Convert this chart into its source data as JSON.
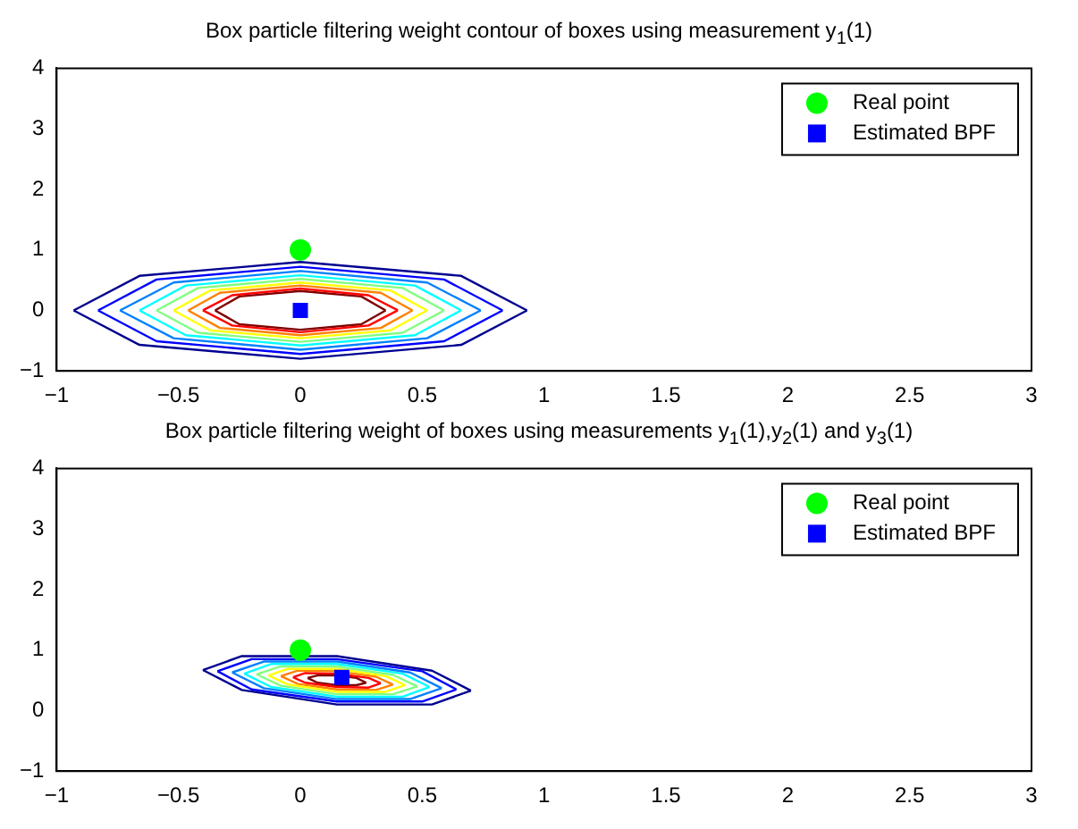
{
  "chart_data": [
    {
      "type": "scatter",
      "title": "Box particle filtering weight contour of boxes using measurement y$_{1}$(1)",
      "xlim": [
        -1,
        3
      ],
      "xticks": [
        -1,
        -0.5,
        0,
        0.5,
        1,
        1.5,
        2,
        2.5,
        3
      ],
      "ylim": [
        -1,
        4
      ],
      "yticks": [
        -1,
        0,
        1,
        2,
        3,
        4
      ],
      "grid": false,
      "legend": "top right",
      "series": [
        {
          "type": "line",
          "marker": "none",
          "color": "#00008f",
          "x": [
            -0.93,
            -0.66,
            0,
            0.66,
            0.93
          ],
          "values": [
            0,
            0.57,
            0.8,
            0.57,
            0
          ]
        },
        {
          "type": "line",
          "marker": "none",
          "color": "#00008f",
          "x": [
            -0.93,
            -0.66,
            0,
            0.66,
            0.93
          ],
          "values": [
            0,
            -0.57,
            -0.8,
            -0.57,
            0
          ]
        },
        {
          "type": "line",
          "marker": "none",
          "color": "#0000ff",
          "x": [
            -0.83,
            -0.59,
            0,
            0.59,
            0.83
          ],
          "values": [
            0,
            0.51,
            0.72,
            0.51,
            0
          ]
        },
        {
          "type": "line",
          "marker": "none",
          "color": "#0000ff",
          "x": [
            -0.83,
            -0.59,
            0,
            0.59,
            0.83
          ],
          "values": [
            0,
            -0.51,
            -0.72,
            -0.51,
            0
          ]
        },
        {
          "type": "line",
          "marker": "none",
          "color": "#0080ff",
          "x": [
            -0.74,
            -0.52,
            0,
            0.52,
            0.74
          ],
          "values": [
            0,
            0.46,
            0.65,
            0.46,
            0
          ]
        },
        {
          "type": "line",
          "marker": "none",
          "color": "#0080ff",
          "x": [
            -0.74,
            -0.52,
            0,
            0.52,
            0.74
          ],
          "values": [
            0,
            -0.46,
            -0.65,
            -0.46,
            0
          ]
        },
        {
          "type": "line",
          "marker": "none",
          "color": "#00ffff",
          "x": [
            -0.66,
            -0.47,
            0,
            0.47,
            0.66
          ],
          "values": [
            0,
            0.41,
            0.58,
            0.41,
            0
          ]
        },
        {
          "type": "line",
          "marker": "none",
          "color": "#00ffff",
          "x": [
            -0.66,
            -0.47,
            0,
            0.47,
            0.66
          ],
          "values": [
            0,
            -0.41,
            -0.58,
            -0.41,
            0
          ]
        },
        {
          "type": "line",
          "marker": "none",
          "color": "#80ff80",
          "x": [
            -0.59,
            -0.42,
            0,
            0.42,
            0.59
          ],
          "values": [
            0,
            0.37,
            0.52,
            0.37,
            0
          ]
        },
        {
          "type": "line",
          "marker": "none",
          "color": "#80ff80",
          "x": [
            -0.59,
            -0.42,
            0,
            0.42,
            0.59
          ],
          "values": [
            0,
            -0.37,
            -0.52,
            -0.37,
            0
          ]
        },
        {
          "type": "line",
          "marker": "none",
          "color": "#ffff00",
          "x": [
            -0.52,
            -0.37,
            0,
            0.37,
            0.52
          ],
          "values": [
            0,
            0.33,
            0.46,
            0.33,
            0
          ]
        },
        {
          "type": "line",
          "marker": "none",
          "color": "#ffff00",
          "x": [
            -0.52,
            -0.37,
            0,
            0.37,
            0.52
          ],
          "values": [
            0,
            -0.33,
            -0.46,
            -0.33,
            0
          ]
        },
        {
          "type": "line",
          "marker": "none",
          "color": "#ff8000",
          "x": [
            -0.46,
            -0.33,
            0,
            0.33,
            0.46
          ],
          "values": [
            0,
            0.29,
            0.41,
            0.29,
            0
          ]
        },
        {
          "type": "line",
          "marker": "none",
          "color": "#ff8000",
          "x": [
            -0.46,
            -0.33,
            0,
            0.33,
            0.46
          ],
          "values": [
            0,
            -0.29,
            -0.41,
            -0.29,
            0
          ]
        },
        {
          "type": "line",
          "marker": "none",
          "color": "#ff0000",
          "x": [
            -0.4,
            -0.28,
            0,
            0.28,
            0.4
          ],
          "values": [
            0,
            0.25,
            0.36,
            0.25,
            0
          ]
        },
        {
          "type": "line",
          "marker": "none",
          "color": "#ff0000",
          "x": [
            -0.4,
            -0.28,
            0,
            0.28,
            0.4
          ],
          "values": [
            0,
            -0.25,
            -0.36,
            -0.25,
            0
          ]
        },
        {
          "type": "line",
          "marker": "none",
          "color": "#800000",
          "x": [
            -0.35,
            -0.25,
            0,
            0.25,
            0.35
          ],
          "values": [
            0,
            0.23,
            0.32,
            0.23,
            0
          ]
        },
        {
          "type": "line",
          "marker": "none",
          "color": "#800000",
          "x": [
            -0.35,
            -0.25,
            0,
            0.25,
            0.35
          ],
          "values": [
            0,
            -0.23,
            -0.32,
            -0.23,
            0
          ]
        },
        {
          "name": "Real point",
          "type": "scatter",
          "marker": "circle",
          "color": "#00ff00",
          "x": [
            0
          ],
          "values": [
            1
          ]
        },
        {
          "name": "Estimated BPF",
          "type": "scatter",
          "marker": "square",
          "color": "#0000ff",
          "x": [
            0
          ],
          "values": [
            0
          ]
        }
      ]
    },
    {
      "type": "scatter",
      "title": "Box particle filtering weight of boxes using measurements y$_{1}$(1),y$_{2}$(1) and y$_{3}$(1)",
      "xlim": [
        -1,
        3
      ],
      "xticks": [
        -1,
        -0.5,
        0,
        0.5,
        1,
        1.5,
        2,
        2.5,
        3
      ],
      "ylim": [
        -1,
        4
      ],
      "yticks": [
        -1,
        0,
        1,
        2,
        3,
        4
      ],
      "grid": false,
      "legend": "top right",
      "series": [
        {
          "type": "line",
          "marker": "none",
          "color": "#00008f",
          "x": [
            -0.4,
            -0.24,
            0.15,
            0.54,
            0.7
          ],
          "values": [
            0.67,
            0.9,
            0.9,
            0.66,
            0.33
          ]
        },
        {
          "type": "line",
          "marker": "none",
          "color": "#00008f",
          "x": [
            -0.4,
            -0.24,
            0.15,
            0.54,
            0.7
          ],
          "values": [
            0.67,
            0.34,
            0.1,
            0.1,
            0.33
          ]
        },
        {
          "type": "line",
          "marker": "none",
          "color": "#0000ff",
          "x": [
            -0.34,
            -0.2,
            0.15,
            0.5,
            0.64
          ],
          "values": [
            0.65,
            0.85,
            0.85,
            0.65,
            0.35
          ]
        },
        {
          "type": "line",
          "marker": "none",
          "color": "#0000ff",
          "x": [
            -0.34,
            -0.2,
            0.15,
            0.5,
            0.64
          ],
          "values": [
            0.65,
            0.35,
            0.15,
            0.15,
            0.35
          ]
        },
        {
          "type": "line",
          "marker": "none",
          "color": "#0080ff",
          "x": [
            -0.28,
            -0.15,
            0.15,
            0.45,
            0.58
          ],
          "values": [
            0.63,
            0.81,
            0.81,
            0.63,
            0.37
          ]
        },
        {
          "type": "line",
          "marker": "none",
          "color": "#0080ff",
          "x": [
            -0.28,
            -0.15,
            0.15,
            0.45,
            0.58
          ],
          "values": [
            0.63,
            0.37,
            0.19,
            0.19,
            0.37
          ]
        },
        {
          "type": "line",
          "marker": "none",
          "color": "#00ffff",
          "x": [
            -0.23,
            -0.12,
            0.15,
            0.42,
            0.53
          ],
          "values": [
            0.61,
            0.77,
            0.77,
            0.61,
            0.39
          ]
        },
        {
          "type": "line",
          "marker": "none",
          "color": "#00ffff",
          "x": [
            -0.23,
            -0.12,
            0.15,
            0.42,
            0.53
          ],
          "values": [
            0.61,
            0.39,
            0.23,
            0.23,
            0.39
          ]
        },
        {
          "type": "line",
          "marker": "none",
          "color": "#80ff80",
          "x": [
            -0.18,
            -0.08,
            0.15,
            0.38,
            0.48
          ],
          "values": [
            0.6,
            0.73,
            0.73,
            0.59,
            0.4
          ]
        },
        {
          "type": "line",
          "marker": "none",
          "color": "#80ff80",
          "x": [
            -0.18,
            -0.08,
            0.15,
            0.38,
            0.48
          ],
          "values": [
            0.6,
            0.41,
            0.27,
            0.27,
            0.4
          ]
        },
        {
          "type": "line",
          "marker": "none",
          "color": "#ffff00",
          "x": [
            -0.13,
            -0.05,
            0.15,
            0.35,
            0.43
          ],
          "values": [
            0.58,
            0.69,
            0.69,
            0.57,
            0.42
          ]
        },
        {
          "type": "line",
          "marker": "none",
          "color": "#ffff00",
          "x": [
            -0.13,
            -0.05,
            0.15,
            0.35,
            0.43
          ],
          "values": [
            0.58,
            0.43,
            0.31,
            0.31,
            0.42
          ]
        },
        {
          "type": "line",
          "marker": "none",
          "color": "#ff8000",
          "x": [
            -0.08,
            -0.01,
            0.15,
            0.31,
            0.38
          ],
          "values": [
            0.57,
            0.66,
            0.65,
            0.56,
            0.43
          ]
        },
        {
          "type": "line",
          "marker": "none",
          "color": "#ff8000",
          "x": [
            -0.08,
            -0.01,
            0.15,
            0.31,
            0.38
          ],
          "values": [
            0.57,
            0.44,
            0.35,
            0.34,
            0.43
          ]
        },
        {
          "type": "line",
          "marker": "none",
          "color": "#ff0000",
          "x": [
            -0.03,
            0.02,
            0.15,
            0.28,
            0.33
          ],
          "values": [
            0.55,
            0.62,
            0.61,
            0.54,
            0.45
          ]
        },
        {
          "type": "line",
          "marker": "none",
          "color": "#ff0000",
          "x": [
            -0.03,
            0.02,
            0.15,
            0.28,
            0.33
          ],
          "values": [
            0.55,
            0.46,
            0.39,
            0.38,
            0.45
          ]
        },
        {
          "type": "line",
          "marker": "none",
          "color": "#800000",
          "x": [
            0.03,
            0.07,
            0.15,
            0.23,
            0.27
          ],
          "values": [
            0.54,
            0.58,
            0.58,
            0.54,
            0.46
          ]
        },
        {
          "type": "line",
          "marker": "none",
          "color": "#800000",
          "x": [
            0.03,
            0.07,
            0.15,
            0.23,
            0.27
          ],
          "values": [
            0.54,
            0.46,
            0.42,
            0.42,
            0.46
          ]
        },
        {
          "name": "Real point",
          "type": "scatter",
          "marker": "circle",
          "color": "#00ff00",
          "x": [
            0
          ],
          "values": [
            1
          ]
        },
        {
          "name": "Estimated BPF",
          "type": "scatter",
          "marker": "square",
          "color": "#0000ff",
          "x": [
            0.17
          ],
          "values": [
            0.55
          ]
        }
      ]
    }
  ]
}
